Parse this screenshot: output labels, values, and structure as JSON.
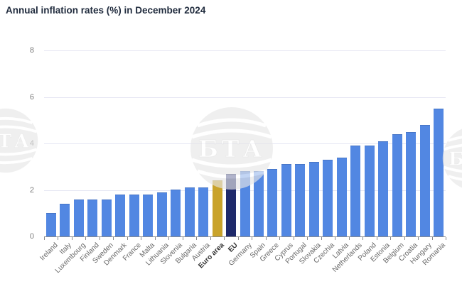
{
  "title": "Annual inflation rates (%) in December 2024",
  "watermark": {
    "text": "БТА"
  },
  "chart_data": {
    "type": "bar",
    "title": "Annual inflation rates (%) in December 2024",
    "categories": [
      "Ireland",
      "Italy",
      "Luxembourg",
      "Finland",
      "Sweden",
      "Denmark",
      "France",
      "Malta",
      "Lithuania",
      "Slovenia",
      "Bulgaria",
      "Austria",
      "Euro area",
      "EU",
      "Germany",
      "Spain",
      "Greece",
      "Cyprus",
      "Portugal",
      "Slovakia",
      "Czechia",
      "Latvia",
      "Netherlands",
      "Poland",
      "Estonia",
      "Belgium",
      "Croatia",
      "Hungary",
      "Romania"
    ],
    "values": [
      1.0,
      1.4,
      1.6,
      1.6,
      1.6,
      1.8,
      1.8,
      1.8,
      1.9,
      2.0,
      2.1,
      2.1,
      2.4,
      2.7,
      2.8,
      2.8,
      2.9,
      3.1,
      3.1,
      3.2,
      3.3,
      3.4,
      3.9,
      3.9,
      4.1,
      4.4,
      4.5,
      4.8,
      5.5
    ],
    "bar_color_default": "#5287e2",
    "bar_color_overrides": {
      "Euro area": "#c9a32b",
      "EU": "#1f2a6b"
    },
    "bold_categories": [
      "Euro area",
      "EU"
    ],
    "xlabel": "",
    "ylabel": "",
    "ylim": [
      0,
      8
    ],
    "yticks": [
      0,
      2,
      4,
      6,
      8
    ],
    "grid": true,
    "legend": "none"
  }
}
